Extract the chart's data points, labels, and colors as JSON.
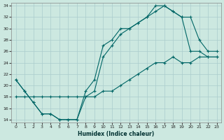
{
  "xlabel": "Humidex (Indice chaleur)",
  "bg_color": "#cce8e0",
  "grid_color": "#aacccc",
  "line_color": "#006666",
  "xlim": [
    -0.5,
    23.5
  ],
  "ylim": [
    13.5,
    34.5
  ],
  "yticks": [
    14,
    16,
    18,
    20,
    22,
    24,
    26,
    28,
    30,
    32,
    34
  ],
  "xticks": [
    0,
    1,
    2,
    3,
    4,
    5,
    6,
    7,
    8,
    9,
    10,
    11,
    12,
    13,
    14,
    15,
    16,
    17,
    18,
    19,
    20,
    21,
    22,
    23
  ],
  "line1_x": [
    0,
    1,
    2,
    3,
    4,
    5,
    6,
    7,
    8,
    9,
    10,
    11,
    12,
    13,
    14,
    15,
    16,
    17,
    18,
    19,
    20,
    21,
    22,
    23
  ],
  "line1_y": [
    21,
    19,
    17,
    15,
    15,
    14,
    14,
    14,
    19,
    21,
    27,
    28,
    30,
    30,
    31,
    32,
    34,
    34,
    33,
    32,
    26,
    26,
    25,
    25
  ],
  "line2_x": [
    0,
    1,
    2,
    3,
    4,
    5,
    6,
    7,
    8,
    9,
    10,
    11,
    12,
    13,
    14,
    15,
    16,
    17,
    18,
    19,
    20,
    21,
    22,
    23
  ],
  "line2_y": [
    21,
    19,
    17,
    15,
    15,
    14,
    14,
    14,
    18,
    19,
    25,
    27,
    29,
    30,
    31,
    32,
    33,
    34,
    33,
    32,
    32,
    28,
    26,
    26
  ],
  "line3_x": [
    0,
    1,
    2,
    3,
    4,
    5,
    6,
    7,
    8,
    9,
    10,
    11,
    12,
    13,
    14,
    15,
    16,
    17,
    18,
    19,
    20,
    21,
    22,
    23
  ],
  "line3_y": [
    18,
    18,
    18,
    18,
    18,
    18,
    18,
    18,
    18,
    18,
    19,
    19,
    20,
    21,
    22,
    23,
    24,
    24,
    25,
    24,
    24,
    25,
    25,
    25
  ]
}
